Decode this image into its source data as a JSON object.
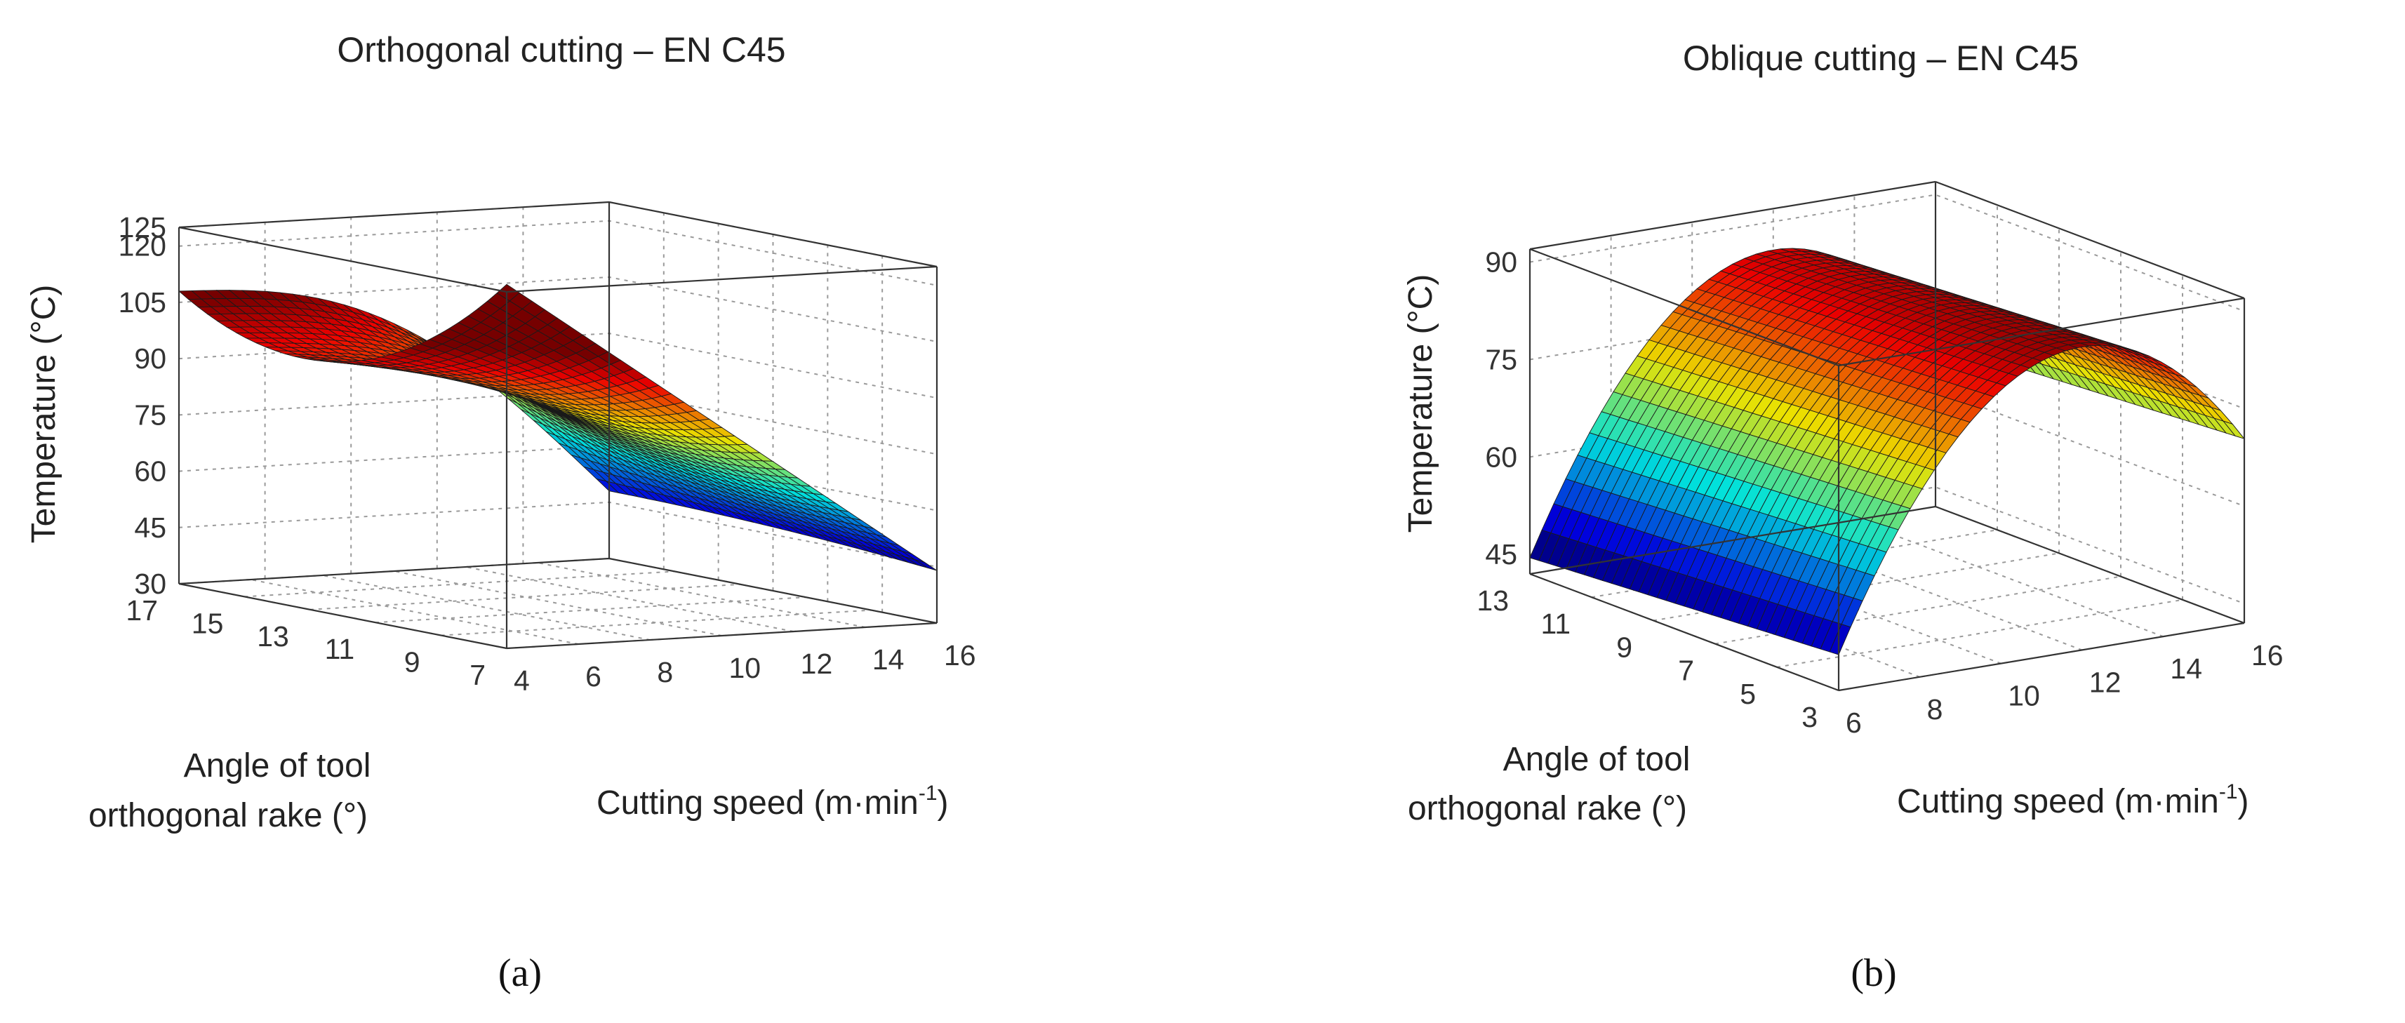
{
  "chart_data": [
    {
      "type": "surface3d",
      "panel": "(a)",
      "title": "Orthogonal cutting – EN C45",
      "xlabel": "Cutting speed (m·min",
      "xlabel_sup": "-1",
      "xlabel_close": ")",
      "ylabel_line1": "Angle of tool",
      "ylabel_line2": "orthogonal rake (°)",
      "zlabel": "Temperature (°C)",
      "xlim": [
        4,
        16
      ],
      "ylim": [
        7,
        17
      ],
      "zlim": [
        30,
        125
      ],
      "xticks": [
        "4",
        "6",
        "8",
        "10",
        "12",
        "14",
        "16"
      ],
      "yticks": [
        "7",
        "9",
        "11",
        "13",
        "15",
        "17"
      ],
      "zticks": [
        "30",
        "45",
        "60",
        "75",
        "90",
        "105",
        "120",
        "125"
      ],
      "x_range": [
        4,
        14
      ],
      "y_range": [
        7,
        17
      ],
      "surface_samples": {
        "note": "Temperature (°C) at corners and saddle of the depicted surface",
        "points": [
          {
            "speed": 4,
            "angle": 17,
            "temperature": 80
          },
          {
            "speed": 6,
            "angle": 15,
            "temperature": 86
          },
          {
            "speed": 8,
            "angle": 12,
            "temperature": 76
          },
          {
            "speed": 10,
            "angle": 10,
            "temperature": 105
          },
          {
            "speed": 4,
            "angle": 7,
            "temperature": 108
          },
          {
            "speed": 9,
            "angle": 7,
            "temperature": 48
          },
          {
            "speed": 14,
            "angle": 7,
            "temperature": 44
          }
        ]
      }
    },
    {
      "type": "surface3d",
      "panel": "(b)",
      "title": "Oblique cutting – EN C45",
      "xlabel": "Cutting speed (m·min",
      "xlabel_sup": "-1",
      "xlabel_close": ")",
      "ylabel_line1": "Angle of tool",
      "ylabel_line2": "orthogonal rake (°)",
      "zlabel": "Temperature (°C)",
      "xlim": [
        6,
        16
      ],
      "ylim": [
        3,
        13
      ],
      "zlim": [
        42,
        92
      ],
      "xticks": [
        "6",
        "8",
        "10",
        "12",
        "14",
        "16"
      ],
      "yticks": [
        "3",
        "5",
        "7",
        "9",
        "11",
        "13"
      ],
      "zticks": [
        "45",
        "60",
        "75",
        "90"
      ],
      "x_range": [
        6,
        16
      ],
      "y_range": [
        3,
        13
      ],
      "surface_samples": {
        "note": "Temperature (°C) along the depicted ridge surface",
        "points": [
          {
            "speed": 6,
            "angle": 11,
            "temperature": 50
          },
          {
            "speed": 6,
            "angle": 3,
            "temperature": 46
          },
          {
            "speed": 11,
            "angle": 8,
            "temperature": 88
          },
          {
            "speed": 16,
            "angle": 11,
            "temperature": 77
          },
          {
            "speed": 16,
            "angle": 3,
            "temperature": 74
          }
        ]
      }
    }
  ]
}
